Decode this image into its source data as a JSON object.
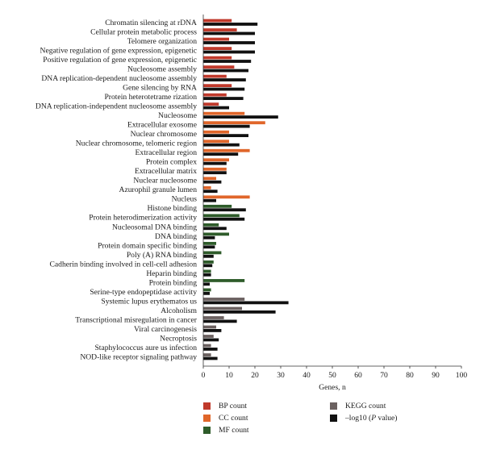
{
  "chart_data": {
    "type": "bar",
    "orientation": "horizontal",
    "xlabel": "Genes, n",
    "xlim": [
      0,
      100
    ],
    "xticks": [
      "0",
      "10",
      "20",
      "30",
      "40",
      "50",
      "60",
      "70",
      "80",
      "90",
      "100"
    ],
    "grid": false,
    "categories": [
      "Chromatin silencing at rDNA",
      "Cellular protein metabolic process",
      "Telomere organization",
      "Negative regulation of gene expression, epigenetic",
      "Positive regulation of gene expression, epigenetic",
      "Nucleosome assembly",
      "DNA replication-dependent nucleosome assembly",
      "Gene silencing by RNA",
      "Protein heterotetrame rization",
      "DNA replication-independent nucleosome assembly",
      "Nucleosome",
      "Extracellular exosome",
      "Nuclear chromosome",
      "Nuclear chromosome, telomeric region",
      "Extracellular region",
      "Protein complex",
      "Extracellular matrix",
      "Nuclear nucleosome",
      "Azurophil granule lumen",
      "Nucleus",
      "Histone binding",
      "Protein heterodimerization activity",
      "Nucleosomal DNA binding",
      "DNA binding",
      "Protein domain specific binding",
      "Poly (A) RNA binding",
      "Cadherin binding involved in cell-cell adhesion",
      "Heparin binding",
      "Protein binding",
      "Serine-type endopeptidase activity",
      "Systemic lupus erythematos us",
      "Alcoholism",
      "Transcriptional misregulation in cancer",
      "Viral carcinogenesis",
      "Necroptosis",
      "Staphylococcus aure us infection",
      "NOD-like receptor signaling pathway"
    ],
    "category_group": [
      "BP",
      "BP",
      "BP",
      "BP",
      "BP",
      "BP",
      "BP",
      "BP",
      "BP",
      "BP",
      "CC",
      "CC",
      "CC",
      "CC",
      "CC",
      "CC",
      "CC",
      "CC",
      "CC",
      "CC",
      "MF",
      "MF",
      "MF",
      "MF",
      "MF",
      "MF",
      "MF",
      "MF",
      "MF",
      "MF",
      "KEGG",
      "KEGG",
      "KEGG",
      "KEGG",
      "KEGG",
      "KEGG",
      "KEGG"
    ],
    "count_values": [
      11,
      13,
      10,
      11,
      11,
      12,
      9,
      11,
      9,
      6,
      16,
      24,
      10,
      10,
      18,
      10,
      9,
      5,
      3,
      18,
      11,
      14,
      6,
      10,
      5,
      7,
      4,
      3,
      16,
      3,
      16,
      15,
      8,
      5,
      4,
      3,
      3
    ],
    "neglog10_p_values": [
      21,
      20,
      20,
      20,
      18.5,
      17.5,
      16.5,
      16,
      15.5,
      10,
      29,
      18,
      17.5,
      14,
      13.5,
      9,
      9,
      7,
      5.5,
      5,
      16.5,
      16,
      9,
      4.5,
      4.5,
      4,
      3.5,
      3,
      2.5,
      2.5,
      33,
      28,
      13,
      7,
      6,
      5.5,
      5.5
    ],
    "legend_position": "bottom",
    "legend": [
      {
        "group": "BP",
        "label": "BP count",
        "color": "#c0392b"
      },
      {
        "group": "CC",
        "label": "CC count",
        "color": "#e0662a"
      },
      {
        "group": "MF",
        "label": "MF count",
        "color": "#2e5c2a"
      },
      {
        "group": "KEGG",
        "label": "KEGG count",
        "color": "#6b6160"
      },
      {
        "group": "P",
        "label_prefix": "–log10 (",
        "label_italic": "P",
        "label_suffix": " value)",
        "color": "#111111"
      }
    ]
  }
}
